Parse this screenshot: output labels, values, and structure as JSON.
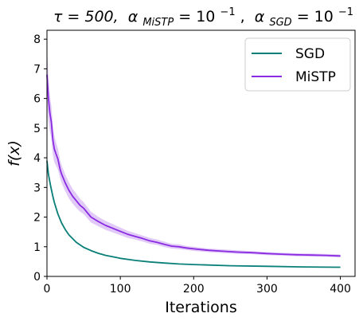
{
  "chart_data": {
    "type": "line",
    "title_parts": {
      "tau": "τ = 500,",
      "alpha": "α",
      "sub_mistp": "MiSTP",
      "eq1": " = 10",
      "sup1": "−1",
      "sep": ",",
      "sub_sgd": "SGD",
      "eq2": " = 10",
      "sup2": "−1"
    },
    "xlabel": "Iterations",
    "ylabel": "f(x)",
    "xlim": [
      0,
      420
    ],
    "ylim": [
      0,
      8.3
    ],
    "xticks": [
      0,
      100,
      200,
      300,
      400
    ],
    "yticks": [
      0,
      1,
      2,
      3,
      4,
      5,
      6,
      7,
      8
    ],
    "grid": false,
    "legend": {
      "position": "top-right"
    },
    "series": [
      {
        "name": "SGD",
        "color": "#0a8079",
        "x": [
          0,
          2,
          5,
          8,
          10,
          15,
          20,
          25,
          30,
          40,
          50,
          60,
          70,
          80,
          90,
          100,
          120,
          140,
          160,
          180,
          200,
          250,
          300,
          350,
          400
        ],
        "y": [
          3.9,
          3.45,
          3.05,
          2.7,
          2.5,
          2.1,
          1.8,
          1.58,
          1.4,
          1.15,
          0.98,
          0.87,
          0.78,
          0.71,
          0.66,
          0.61,
          0.54,
          0.49,
          0.45,
          0.42,
          0.4,
          0.36,
          0.34,
          0.32,
          0.31
        ],
        "band": [
          0.18,
          0.15,
          0.12,
          0.1,
          0.08,
          0.06,
          0.05,
          0.04,
          0.03,
          0.03,
          0.02,
          0.02,
          0.02,
          0.02,
          0.02,
          0.02,
          0.01,
          0.01,
          0.01,
          0.01,
          0.01,
          0.01,
          0.01,
          0.01,
          0.01
        ]
      },
      {
        "name": "MiSTP",
        "color": "#8a2be2",
        "x": [
          0,
          2,
          4,
          6,
          8,
          10,
          12,
          15,
          18,
          20,
          25,
          30,
          35,
          40,
          45,
          50,
          55,
          60,
          70,
          80,
          90,
          100,
          110,
          120,
          130,
          140,
          150,
          160,
          170,
          180,
          190,
          200,
          220,
          240,
          260,
          280,
          300,
          320,
          340,
          360,
          380,
          400
        ],
        "y": [
          6.8,
          6.0,
          5.5,
          5.2,
          4.6,
          4.3,
          4.15,
          3.95,
          3.6,
          3.45,
          3.15,
          2.9,
          2.7,
          2.55,
          2.4,
          2.3,
          2.15,
          2.0,
          1.85,
          1.72,
          1.62,
          1.52,
          1.42,
          1.35,
          1.28,
          1.2,
          1.15,
          1.08,
          1.02,
          1.0,
          0.96,
          0.93,
          0.88,
          0.85,
          0.82,
          0.8,
          0.77,
          0.75,
          0.73,
          0.72,
          0.71,
          0.69
        ],
        "band": [
          0.9,
          0.75,
          0.6,
          0.55,
          0.5,
          0.45,
          0.4,
          0.35,
          0.3,
          0.3,
          0.28,
          0.27,
          0.25,
          0.24,
          0.22,
          0.2,
          0.19,
          0.18,
          0.16,
          0.15,
          0.14,
          0.13,
          0.12,
          0.11,
          0.1,
          0.1,
          0.09,
          0.09,
          0.08,
          0.08,
          0.07,
          0.07,
          0.06,
          0.06,
          0.06,
          0.05,
          0.05,
          0.05,
          0.05,
          0.05,
          0.05,
          0.05
        ]
      }
    ]
  }
}
